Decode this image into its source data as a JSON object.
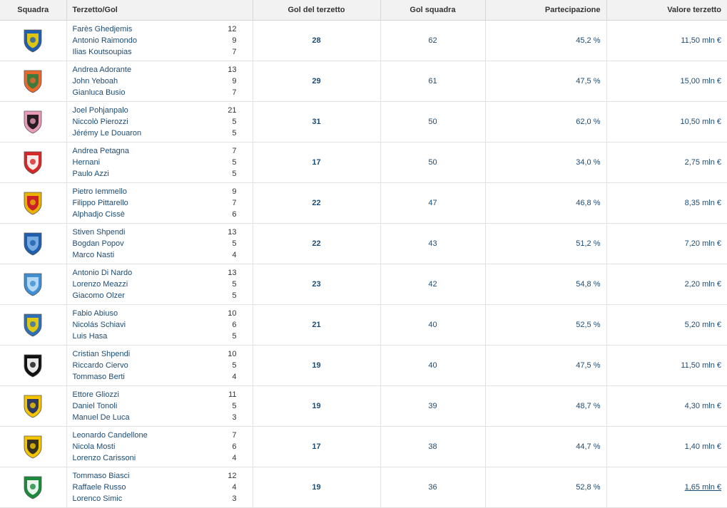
{
  "headers": {
    "team": "Squadra",
    "trio": "Terzetto/Gol",
    "trio_goals": "Gol del terzetto",
    "team_goals": "Gol squadra",
    "share": "Partecipazione",
    "value": "Valore terzetto"
  },
  "rows": [
    {
      "crest": {
        "icon": "frosinone-crest-icon",
        "primary": "#1f5fae",
        "secondary": "#f4d000"
      },
      "players": [
        {
          "name": "Farès Ghedjemis",
          "goals": "12"
        },
        {
          "name": "Antonio Raimondo",
          "goals": "9"
        },
        {
          "name": "Ilias Koutsoupias",
          "goals": "7"
        }
      ],
      "trio_goals": "28",
      "team_goals": "62",
      "share": "45,2 %",
      "value": "11,50 mln €"
    },
    {
      "crest": {
        "icon": "venezia-crest-icon",
        "primary": "#e8692b",
        "secondary": "#2f7a3f"
      },
      "players": [
        {
          "name": "Andrea Adorante",
          "goals": "13"
        },
        {
          "name": "John Yeboah",
          "goals": "9"
        },
        {
          "name": "Gianluca Busio",
          "goals": "7"
        }
      ],
      "trio_goals": "29",
      "team_goals": "61",
      "share": "47,5 %",
      "value": "15,00 mln €"
    },
    {
      "crest": {
        "icon": "palermo-crest-icon",
        "primary": "#e89bb8",
        "secondary": "#111111"
      },
      "players": [
        {
          "name": "Joel Pohjanpalo",
          "goals": "21"
        },
        {
          "name": "Niccolò Pierozzi",
          "goals": "5"
        },
        {
          "name": "Jérémy Le Douaron",
          "goals": "5"
        }
      ],
      "trio_goals": "31",
      "team_goals": "50",
      "share": "62,0 %",
      "value": "10,50 mln €"
    },
    {
      "crest": {
        "icon": "padova-crest-icon",
        "primary": "#d62828",
        "secondary": "#ffffff"
      },
      "players": [
        {
          "name": "Andrea Petagna",
          "goals": "7"
        },
        {
          "name": "Hernani",
          "goals": "5"
        },
        {
          "name": "Paulo Azzi",
          "goals": "5"
        }
      ],
      "trio_goals": "17",
      "team_goals": "50",
      "share": "34,0 %",
      "value": "2,75 mln €"
    },
    {
      "crest": {
        "icon": "catanzaro-crest-icon",
        "primary": "#e9b200",
        "secondary": "#c8102e"
      },
      "players": [
        {
          "name": "Pietro Iemmello",
          "goals": "9"
        },
        {
          "name": "Filippo Pittarello",
          "goals": "7"
        },
        {
          "name": "Alphadjo Cissè",
          "goals": "6"
        }
      ],
      "trio_goals": "22",
      "team_goals": "47",
      "share": "46,8 %",
      "value": "8,35 mln €"
    },
    {
      "crest": {
        "icon": "empoli-crest-icon",
        "primary": "#1f5fae",
        "secondary": "#7fb2e5"
      },
      "players": [
        {
          "name": "Stiven Shpendi",
          "goals": "13"
        },
        {
          "name": "Bogdan Popov",
          "goals": "5"
        },
        {
          "name": "Marco Nasti",
          "goals": "4"
        }
      ],
      "trio_goals": "22",
      "team_goals": "43",
      "share": "51,2 %",
      "value": "7,20 mln €"
    },
    {
      "crest": {
        "icon": "pescara-crest-icon",
        "primary": "#3f8fd2",
        "secondary": "#bfe0f7"
      },
      "players": [
        {
          "name": "Antonio Di Nardo",
          "goals": "13"
        },
        {
          "name": "Lorenzo Meazzi",
          "goals": "5"
        },
        {
          "name": "Giacomo Olzer",
          "goals": "5"
        }
      ],
      "trio_goals": "23",
      "team_goals": "42",
      "share": "54,8 %",
      "value": "2,20 mln €"
    },
    {
      "crest": {
        "icon": "carrarese-crest-icon",
        "primary": "#2f6fb5",
        "secondary": "#f4d000"
      },
      "players": [
        {
          "name": "Fabio Abiuso",
          "goals": "10"
        },
        {
          "name": "Nicolás Schiavi",
          "goals": "6"
        },
        {
          "name": "Luis Hasa",
          "goals": "5"
        }
      ],
      "trio_goals": "21",
      "team_goals": "40",
      "share": "52,5 %",
      "value": "5,20 mln €"
    },
    {
      "crest": {
        "icon": "cesena-crest-icon",
        "primary": "#111111",
        "secondary": "#ffffff"
      },
      "players": [
        {
          "name": "Cristian Shpendi",
          "goals": "10"
        },
        {
          "name": "Riccardo Ciervo",
          "goals": "5"
        },
        {
          "name": "Tommaso Berti",
          "goals": "4"
        }
      ],
      "trio_goals": "19",
      "team_goals": "40",
      "share": "47,5 %",
      "value": "11,50 mln €"
    },
    {
      "crest": {
        "icon": "modena-crest-icon",
        "primary": "#f4c400",
        "secondary": "#1a2a6c"
      },
      "players": [
        {
          "name": "Ettore Gliozzi",
          "goals": "11"
        },
        {
          "name": "Daniel Tonoli",
          "goals": "5"
        },
        {
          "name": "Manuel De Luca",
          "goals": "3"
        }
      ],
      "trio_goals": "19",
      "team_goals": "39",
      "share": "48,7 %",
      "value": "4,30 mln €"
    },
    {
      "crest": {
        "icon": "juve-stabia-crest-icon",
        "primary": "#f4c400",
        "secondary": "#222222"
      },
      "players": [
        {
          "name": "Leonardo Candellone",
          "goals": "7"
        },
        {
          "name": "Nicola Mosti",
          "goals": "6"
        },
        {
          "name": "Lorenzo Carissoni",
          "goals": "4"
        }
      ],
      "trio_goals": "17",
      "team_goals": "38",
      "share": "44,7 %",
      "value": "1,40 mln €"
    },
    {
      "crest": {
        "icon": "avellino-crest-icon",
        "primary": "#1b8a3c",
        "secondary": "#ffffff"
      },
      "players": [
        {
          "name": "Tommaso Biasci",
          "goals": "12"
        },
        {
          "name": "Raffaele Russo",
          "goals": "4"
        },
        {
          "name": "Lorenco Simic",
          "goals": "3"
        }
      ],
      "trio_goals": "19",
      "team_goals": "36",
      "share": "52,8 %",
      "value": "1,65 mln €",
      "value_underlined": true
    }
  ]
}
